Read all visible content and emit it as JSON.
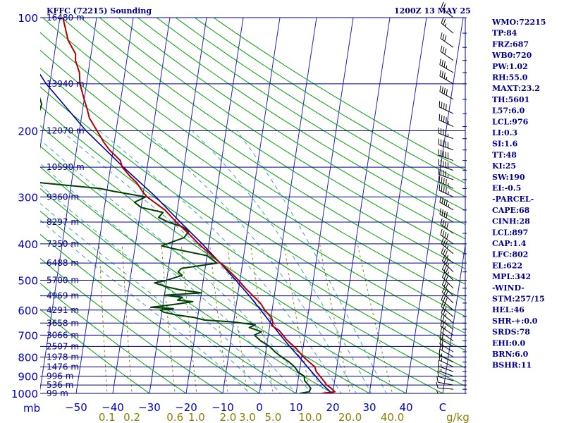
{
  "header": {
    "station": "KFFC (72215) Sounding",
    "time": "1200Z 13 MAY 25"
  },
  "indices": [
    "WMO:72215",
    "TP:84",
    "FRZ:687",
    "WB0:720",
    "PW:1.02",
    "RH:55.0",
    "MAXT:23.2",
    "TH:5601",
    "L57:6.0",
    "LCL:976",
    "LI:0.3",
    "SI:1.6",
    "TT:48",
    "KI:25",
    "SW:190",
    "EI:-0.5",
    "-PARCEL-",
    "CAPE:68",
    "CINH:28",
    "LCL:897",
    "CAP:1.4",
    "LFC:802",
    "EL:622",
    "MPL:342",
    "-WIND-",
    "STM:257/15",
    "HEL:46",
    "SHR-+:0.0",
    "SRDS:78",
    "EHI:0.0",
    "BRN:6.0",
    "BSHR:11"
  ],
  "colors": {
    "isobar": "#00008b",
    "isotherm": "#2020c0",
    "dry_adiabat": "#00a000",
    "moist_adiabat": "#40a0c0",
    "mixing_ratio": "#8b8000",
    "temperature": "#b00000",
    "dewpoint": "#004000",
    "parcel": "#0000a0"
  },
  "chart_data": {
    "type": "line",
    "diagram": "skew-T log-P",
    "pressure_ticks": [
      {
        "p": 100,
        "label": "100"
      },
      {
        "p": 200,
        "label": "200"
      },
      {
        "p": 300,
        "label": "300"
      },
      {
        "p": 400,
        "label": "400"
      },
      {
        "p": 500,
        "label": "500"
      },
      {
        "p": 600,
        "label": "600"
      },
      {
        "p": 700,
        "label": "700"
      },
      {
        "p": 800,
        "label": "800"
      },
      {
        "p": 900,
        "label": "900"
      },
      {
        "p": 1000,
        "label": "1000"
      }
    ],
    "pressure_axis_unit": "mb",
    "temperature_ticks": [
      {
        "t": -50,
        "label": "−50"
      },
      {
        "t": -40,
        "label": "−40"
      },
      {
        "t": -30,
        "label": "−30"
      },
      {
        "t": -20,
        "label": "−20"
      },
      {
        "t": -10,
        "label": "−10"
      },
      {
        "t": 0,
        "label": "0"
      },
      {
        "t": 10,
        "label": "10"
      },
      {
        "t": 20,
        "label": "20"
      },
      {
        "t": 30,
        "label": "30"
      },
      {
        "t": 40,
        "label": "40"
      },
      {
        "t": 50,
        "label": "C"
      }
    ],
    "mixing_ratio_labels": [
      {
        "w": 0.1,
        "label": "0.1"
      },
      {
        "w": 0.2,
        "label": "0.2"
      },
      {
        "w": 0.6,
        "label": "0.6"
      },
      {
        "w": 1.0,
        "label": "1.0"
      },
      {
        "w": 2.0,
        "label": "2.0"
      },
      {
        "w": 3.0,
        "label": "3.0"
      },
      {
        "w": 5.0,
        "label": "5.0"
      },
      {
        "w": 10.0,
        "label": "10.0"
      },
      {
        "w": 20.0,
        "label": "20.0"
      },
      {
        "w": 40.0,
        "label": "40.0"
      }
    ],
    "mixing_ratio_unit": "g/kg",
    "heights": [
      {
        "p": 100,
        "label": "16480 m"
      },
      {
        "p": 150,
        "label": "13940 m"
      },
      {
        "p": 200,
        "label": "12070 m"
      },
      {
        "p": 250,
        "label": "10590 m"
      },
      {
        "p": 300,
        "label": "9360 m"
      },
      {
        "p": 350,
        "label": "8297 m"
      },
      {
        "p": 400,
        "label": "7350 m"
      },
      {
        "p": 450,
        "label": "6488 m"
      },
      {
        "p": 500,
        "label": "5700 m"
      },
      {
        "p": 550,
        "label": "4969 m"
      },
      {
        "p": 600,
        "label": "4291 m"
      },
      {
        "p": 650,
        "label": "3658 m"
      },
      {
        "p": 700,
        "label": "3066 m"
      },
      {
        "p": 750,
        "label": "2507 m"
      },
      {
        "p": 800,
        "label": "1978 m"
      },
      {
        "p": 850,
        "label": "1476 m"
      },
      {
        "p": 900,
        "label": "996 m"
      },
      {
        "p": 950,
        "label": "536 m"
      },
      {
        "p": 1000,
        "label": "99 m"
      }
    ],
    "temperature_profile": [
      [
        1000,
        17.0
      ],
      [
        990,
        20.5
      ],
      [
        970,
        19.4
      ],
      [
        950,
        18.0
      ],
      [
        925,
        17.0
      ],
      [
        900,
        15.8
      ],
      [
        875,
        14.6
      ],
      [
        850,
        14.0
      ],
      [
        800,
        10.5
      ],
      [
        760,
        8.2
      ],
      [
        720,
        5.2
      ],
      [
        700,
        4.0
      ],
      [
        680,
        2.8
      ],
      [
        660,
        0.5
      ],
      [
        650,
        0.8
      ],
      [
        630,
        0.2
      ],
      [
        600,
        -2.0
      ],
      [
        575,
        -3.5
      ],
      [
        550,
        -5.8
      ],
      [
        525,
        -8.2
      ],
      [
        500,
        -10.4
      ],
      [
        475,
        -13.0
      ],
      [
        450,
        -16.0
      ],
      [
        425,
        -19.3
      ],
      [
        400,
        -22.8
      ],
      [
        375,
        -26.0
      ],
      [
        350,
        -29.8
      ],
      [
        325,
        -33.4
      ],
      [
        300,
        -38.8
      ],
      [
        290,
        -40.3
      ],
      [
        275,
        -42.2
      ],
      [
        265,
        -44.2
      ],
      [
        250,
        -46.8
      ],
      [
        240,
        -47.6
      ],
      [
        225,
        -51.0
      ],
      [
        215,
        -52.8
      ],
      [
        200,
        -55.2
      ],
      [
        185,
        -57.8
      ],
      [
        175,
        -58.8
      ],
      [
        165,
        -60.0
      ],
      [
        150,
        -61.8
      ],
      [
        140,
        -62.4
      ],
      [
        130,
        -64.0
      ],
      [
        125,
        -64.2
      ],
      [
        115,
        -66.8
      ],
      [
        100,
        -69.2
      ]
    ],
    "dewpoint_profile": [
      [
        1000,
        11.0
      ],
      [
        990,
        13.5
      ],
      [
        970,
        13.8
      ],
      [
        950,
        13.0
      ],
      [
        925,
        11.8
      ],
      [
        900,
        11.5
      ],
      [
        880,
        9.8
      ],
      [
        850,
        8.5
      ],
      [
        825,
        6.8
      ],
      [
        800,
        4.5
      ],
      [
        775,
        2.5
      ],
      [
        750,
        0.8
      ],
      [
        725,
        -1.8
      ],
      [
        700,
        -3.8
      ],
      [
        685,
        -2.0
      ],
      [
        668,
        -5.5
      ],
      [
        657,
        -4.0
      ],
      [
        645,
        -10.5
      ],
      [
        638,
        -18.0
      ],
      [
        628,
        -21.0
      ],
      [
        618,
        -26.0
      ],
      [
        608,
        -29.5
      ],
      [
        600,
        -30.5
      ],
      [
        595,
        -27.0
      ],
      [
        590,
        -33.2
      ],
      [
        585,
        -30.0
      ],
      [
        578,
        -26.0
      ],
      [
        570,
        -22.0
      ],
      [
        565,
        -26.2
      ],
      [
        555,
        -25.0
      ],
      [
        548,
        -30.0
      ],
      [
        540,
        -20.0
      ],
      [
        530,
        -26.0
      ],
      [
        520,
        -30.0
      ],
      [
        508,
        -33.2
      ],
      [
        500,
        -30.0
      ],
      [
        485,
        -26.0
      ],
      [
        475,
        -27.2
      ],
      [
        465,
        -26.5
      ],
      [
        450,
        -17.0
      ],
      [
        430,
        -20.0
      ],
      [
        415,
        -28.0
      ],
      [
        405,
        -32.8
      ],
      [
        395,
        -30.0
      ],
      [
        385,
        -27.0
      ],
      [
        370,
        -26.0
      ],
      [
        360,
        -28.0
      ],
      [
        350,
        -32.0
      ],
      [
        340,
        -34.8
      ],
      [
        330,
        -33.8
      ],
      [
        320,
        -40.0
      ],
      [
        310,
        -42.0
      ],
      [
        300,
        -39.2
      ],
      [
        290,
        -48.0
      ],
      [
        285,
        -52.0
      ],
      [
        275,
        -68.4
      ],
      [
        265,
        -72.0
      ],
      [
        255,
        -72.8
      ],
      [
        245,
        -72.6
      ],
      [
        235,
        -72.0
      ],
      [
        225,
        -71.8
      ],
      [
        215,
        -71.4
      ],
      [
        205,
        -71.2
      ],
      [
        200,
        -72.0
      ],
      [
        190,
        -71.6
      ],
      [
        180,
        -71.8
      ],
      [
        170,
        -71.4
      ],
      [
        160,
        -72.6
      ],
      [
        150,
        -73.0
      ],
      [
        140,
        -73.8
      ],
      [
        130,
        -75.0
      ],
      [
        120,
        -76.6
      ],
      [
        110,
        -78.8
      ],
      [
        100,
        -81.2
      ]
    ],
    "parcel_profile": [
      [
        1000,
        19.8
      ],
      [
        950,
        17.0
      ],
      [
        900,
        14.6
      ],
      [
        850,
        12.0
      ],
      [
        800,
        9.3
      ],
      [
        750,
        6.3
      ],
      [
        700,
        3.3
      ],
      [
        650,
        0.2
      ],
      [
        600,
        -3.1
      ],
      [
        550,
        -6.8
      ],
      [
        500,
        -11.1
      ],
      [
        450,
        -16.1
      ],
      [
        400,
        -21.8
      ],
      [
        350,
        -28.7
      ],
      [
        300,
        -36.4
      ],
      [
        250,
        -46.5
      ],
      [
        200,
        -58.2
      ],
      [
        150,
        -71.0
      ],
      [
        120,
        -79.0
      ],
      [
        100,
        -84.6
      ]
    ],
    "wind_barbs": [
      {
        "p": 1000,
        "dir": 270,
        "spd": 5
      },
      {
        "p": 975,
        "dir": 275,
        "spd": 10
      },
      {
        "p": 950,
        "dir": 280,
        "spd": 10
      },
      {
        "p": 925,
        "dir": 285,
        "spd": 10
      },
      {
        "p": 900,
        "dir": 290,
        "spd": 15
      },
      {
        "p": 875,
        "dir": 290,
        "spd": 15
      },
      {
        "p": 850,
        "dir": 295,
        "spd": 15
      },
      {
        "p": 825,
        "dir": 295,
        "spd": 15
      },
      {
        "p": 800,
        "dir": 300,
        "spd": 20
      },
      {
        "p": 775,
        "dir": 300,
        "spd": 20
      },
      {
        "p": 750,
        "dir": 300,
        "spd": 20
      },
      {
        "p": 725,
        "dir": 305,
        "spd": 20
      },
      {
        "p": 700,
        "dir": 305,
        "spd": 25
      },
      {
        "p": 675,
        "dir": 305,
        "spd": 25
      },
      {
        "p": 650,
        "dir": 310,
        "spd": 25
      },
      {
        "p": 625,
        "dir": 310,
        "spd": 25
      },
      {
        "p": 600,
        "dir": 310,
        "spd": 30
      },
      {
        "p": 575,
        "dir": 315,
        "spd": 30
      },
      {
        "p": 550,
        "dir": 315,
        "spd": 30
      },
      {
        "p": 525,
        "dir": 315,
        "spd": 30
      },
      {
        "p": 500,
        "dir": 315,
        "spd": 35
      },
      {
        "p": 475,
        "dir": 315,
        "spd": 35
      },
      {
        "p": 450,
        "dir": 310,
        "spd": 35
      },
      {
        "p": 425,
        "dir": 310,
        "spd": 35
      },
      {
        "p": 400,
        "dir": 305,
        "spd": 40
      },
      {
        "p": 375,
        "dir": 305,
        "spd": 40
      },
      {
        "p": 350,
        "dir": 300,
        "spd": 40
      },
      {
        "p": 325,
        "dir": 300,
        "spd": 45
      },
      {
        "p": 300,
        "dir": 295,
        "spd": 45
      },
      {
        "p": 285,
        "dir": 295,
        "spd": 45
      },
      {
        "p": 270,
        "dir": 290,
        "spd": 45
      },
      {
        "p": 255,
        "dir": 290,
        "spd": 50
      },
      {
        "p": 240,
        "dir": 290,
        "spd": 50
      },
      {
        "p": 225,
        "dir": 290,
        "spd": 50
      },
      {
        "p": 210,
        "dir": 290,
        "spd": 45
      },
      {
        "p": 195,
        "dir": 295,
        "spd": 45
      },
      {
        "p": 180,
        "dir": 295,
        "spd": 40
      },
      {
        "p": 165,
        "dir": 300,
        "spd": 40
      },
      {
        "p": 150,
        "dir": 300,
        "spd": 35
      },
      {
        "p": 140,
        "dir": 300,
        "spd": 35
      },
      {
        "p": 130,
        "dir": 305,
        "spd": 30
      },
      {
        "p": 120,
        "dir": 305,
        "spd": 30
      },
      {
        "p": 110,
        "dir": 310,
        "spd": 25
      },
      {
        "p": 100,
        "dir": 310,
        "spd": 20
      }
    ]
  }
}
